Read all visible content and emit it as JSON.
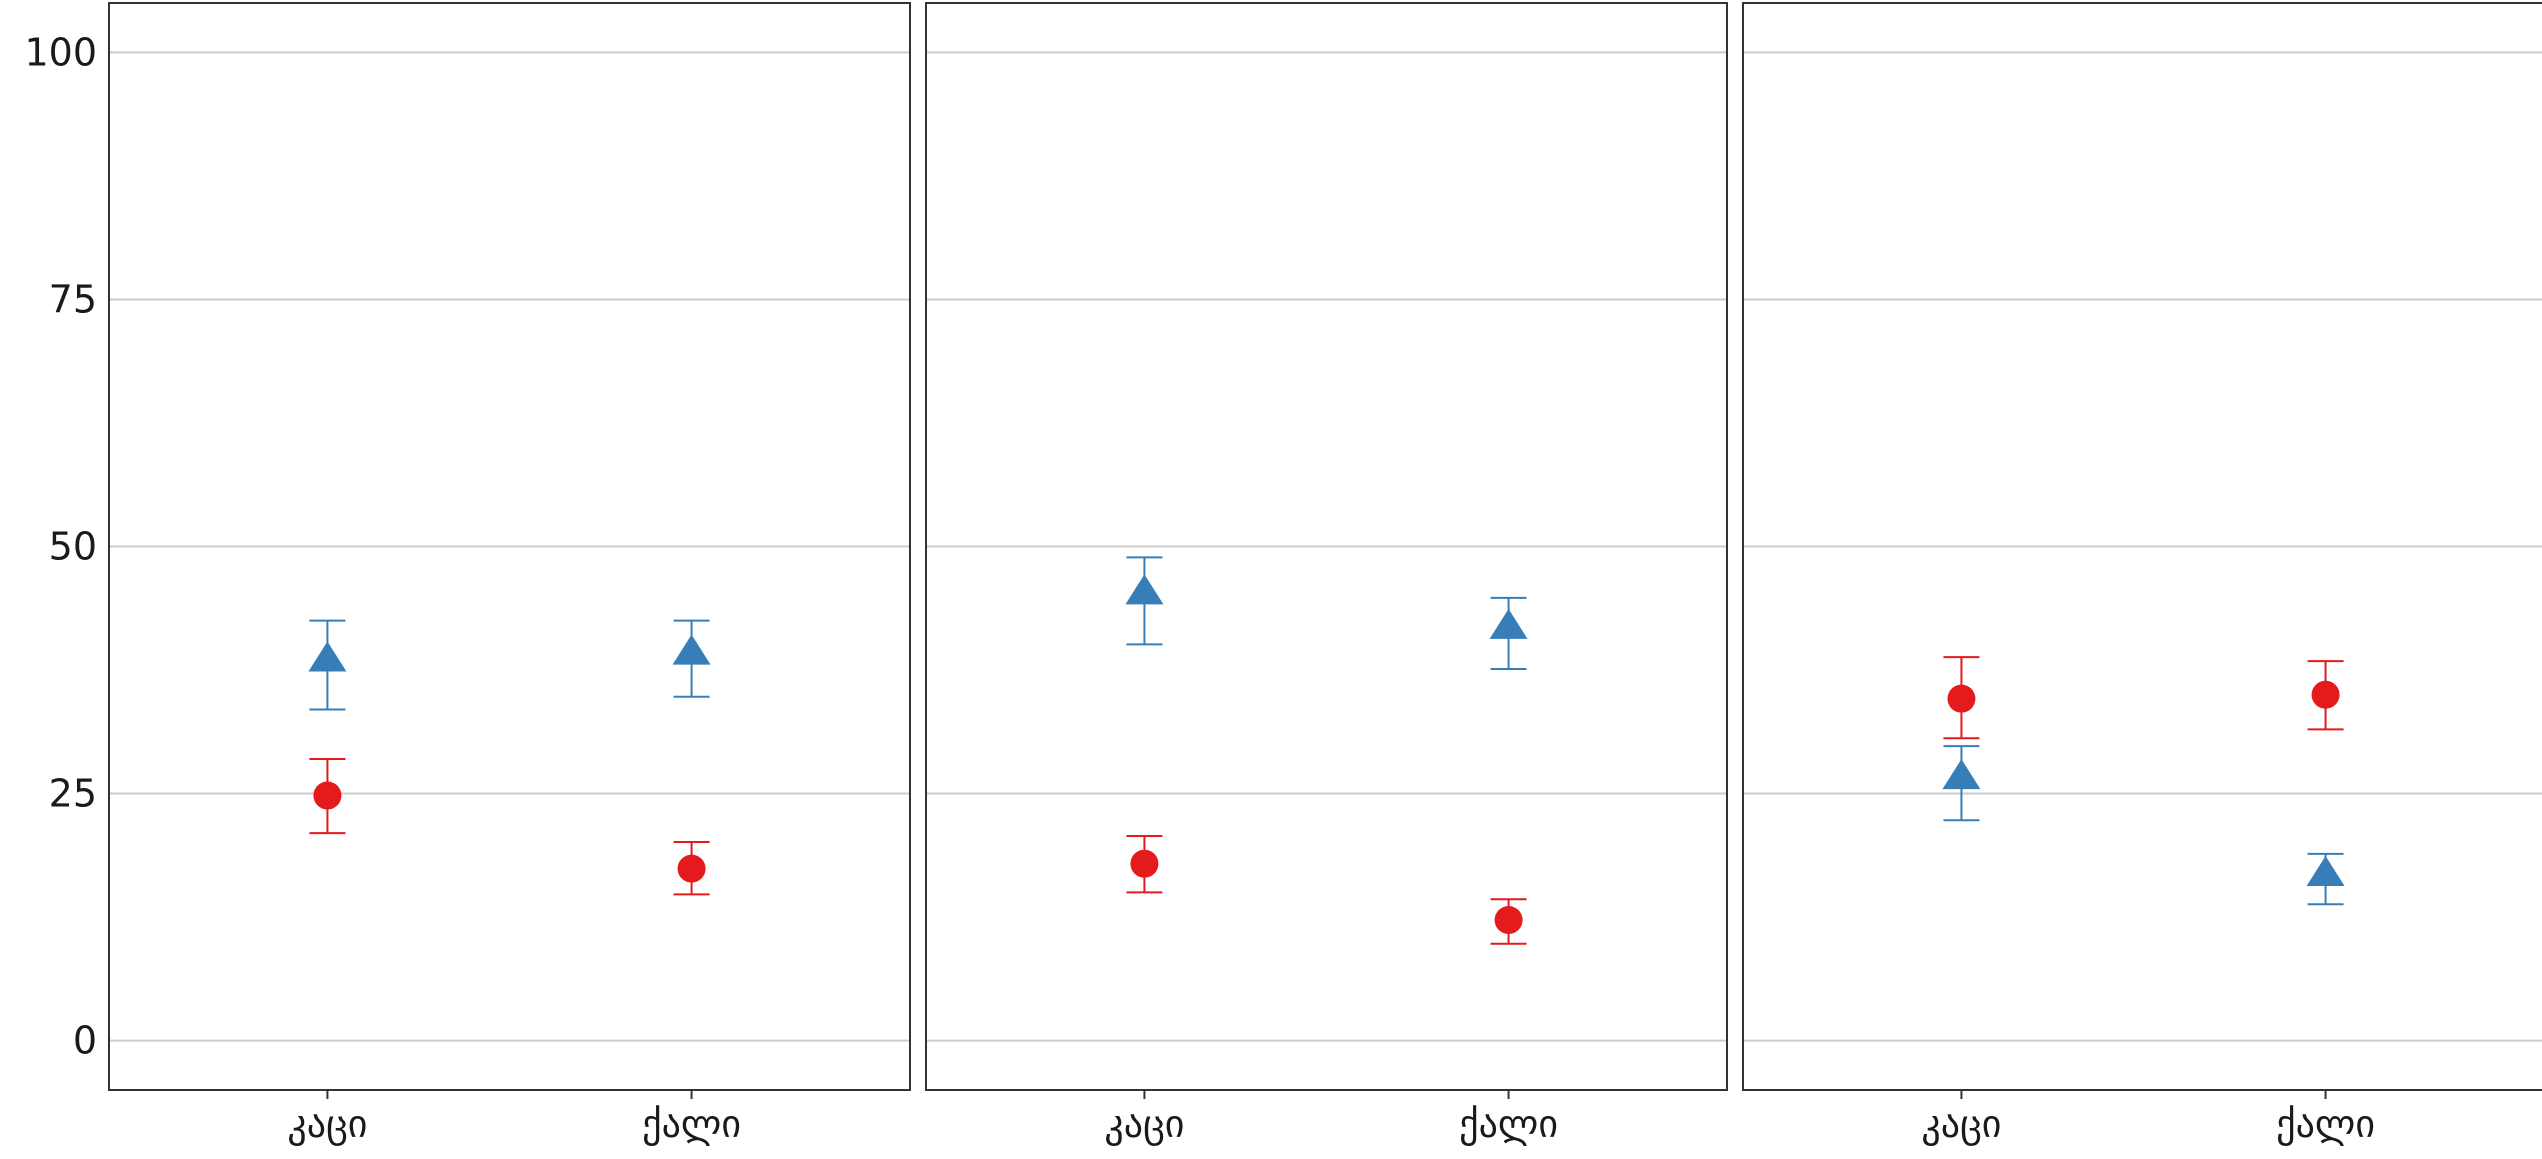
{
  "chart_data": {
    "type": "scatter",
    "y_ticks": [
      0,
      25,
      50,
      75,
      100
    ],
    "ylim": [
      -5,
      105
    ],
    "grid": true,
    "colors": {
      "circle": "#e41a1c",
      "triangle": "#377eb8"
    },
    "facets": [
      {
        "categories": [
          "კაცი",
          "ქალი"
        ],
        "series": [
          {
            "marker": "circle",
            "values": [
              24.8,
              17.4
            ],
            "lower": [
              21.0,
              14.8
            ],
            "upper": [
              28.5,
              20.1
            ]
          },
          {
            "marker": "triangle",
            "values": [
              38.5,
              39.2
            ],
            "lower": [
              33.5,
              34.8
            ],
            "upper": [
              42.5,
              42.5
            ]
          }
        ]
      },
      {
        "categories": [
          "კაცი",
          "ქალი"
        ],
        "series": [
          {
            "marker": "circle",
            "values": [
              17.9,
              12.2
            ],
            "lower": [
              15.0,
              9.8
            ],
            "upper": [
              20.7,
              14.3
            ]
          },
          {
            "marker": "triangle",
            "values": [
              45.3,
              41.8
            ],
            "lower": [
              40.1,
              37.6
            ],
            "upper": [
              48.9,
              44.8
            ]
          }
        ]
      },
      {
        "categories": [
          "კაცი",
          "ქალი"
        ],
        "series": [
          {
            "marker": "circle",
            "values": [
              34.6,
              35.0
            ],
            "lower": [
              30.6,
              31.5
            ],
            "upper": [
              38.8,
              38.4
            ]
          },
          {
            "marker": "triangle",
            "values": [
              26.6,
              16.8
            ],
            "lower": [
              22.3,
              13.8
            ],
            "upper": [
              29.8,
              18.9
            ]
          }
        ]
      }
    ]
  }
}
